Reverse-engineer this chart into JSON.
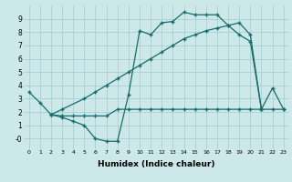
{
  "xlabel": "Humidex (Indice chaleur)",
  "background_color": "#cce8e8",
  "grid_color": "#aad0d0",
  "line_color": "#1a6b6b",
  "xlim": [
    -0.5,
    23.5
  ],
  "ylim": [
    -0.8,
    10.0
  ],
  "line1_x": [
    0,
    1,
    2,
    3,
    4,
    5,
    6,
    7,
    8,
    9,
    10,
    11,
    12,
    13,
    14,
    15,
    16,
    17,
    18,
    19,
    20,
    21
  ],
  "line1_y": [
    3.5,
    2.7,
    1.8,
    1.6,
    1.3,
    1.0,
    0.0,
    -0.2,
    -0.2,
    3.3,
    8.1,
    7.8,
    8.7,
    8.8,
    9.5,
    9.3,
    9.3,
    9.3,
    8.5,
    7.8,
    7.3,
    2.2
  ],
  "line2_x": [
    2,
    3,
    4,
    5,
    6,
    7,
    8,
    9,
    10,
    11,
    12,
    13,
    14,
    15,
    16,
    17,
    18,
    19,
    20,
    21,
    22,
    23
  ],
  "line2_y": [
    1.8,
    1.7,
    1.7,
    1.7,
    1.7,
    1.7,
    2.2,
    2.2,
    2.2,
    2.2,
    2.2,
    2.2,
    2.2,
    2.2,
    2.2,
    2.2,
    2.2,
    2.2,
    2.2,
    2.2,
    2.2,
    2.2
  ],
  "line3_x": [
    2,
    3,
    5,
    6,
    7,
    8,
    9,
    10,
    11,
    12,
    13,
    14,
    15,
    16,
    17,
    18,
    19,
    20,
    21,
    22,
    23
  ],
  "line3_y": [
    1.8,
    2.2,
    3.0,
    3.5,
    4.0,
    4.5,
    5.0,
    5.5,
    6.0,
    6.5,
    7.0,
    7.5,
    7.8,
    8.1,
    8.3,
    8.5,
    8.7,
    7.8,
    2.2,
    3.8,
    2.2
  ]
}
